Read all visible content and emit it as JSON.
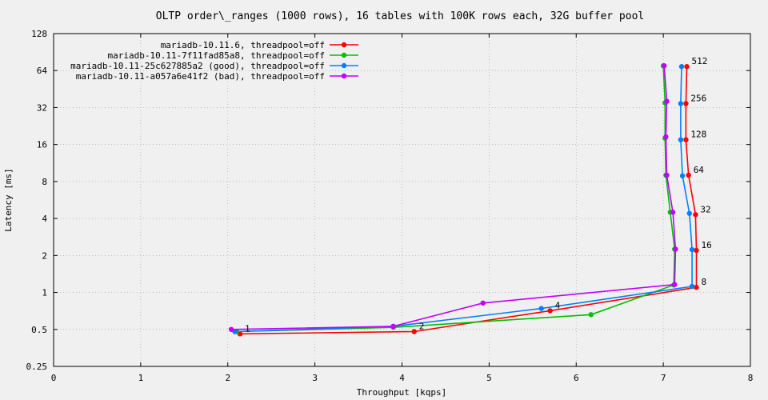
{
  "chart_data": {
    "type": "line",
    "title": "OLTP order\\_ranges (1000 rows), 16 tables with 100K rows each, 32G buffer pool",
    "xlabel": "Throughput [kqps]",
    "ylabel": "Latency [ms]",
    "xlim": [
      0,
      8
    ],
    "ylim": [
      0.25,
      128
    ],
    "yscale": "log2",
    "x_ticks": [
      "0",
      "1",
      "2",
      "3",
      "4",
      "5",
      "6",
      "7",
      "8"
    ],
    "y_ticks": [
      "0.25",
      "0.5",
      "1",
      "2",
      "4",
      "8",
      "16",
      "32",
      "64",
      "128"
    ],
    "grid": true,
    "legend_position": "top-left",
    "point_labels": [
      "1",
      "2",
      "4",
      "8",
      "16",
      "32",
      "64",
      "128",
      "256",
      "512"
    ],
    "series": [
      {
        "name": "mariadb-10.11.6, threadpool=off",
        "color": "#ff0000",
        "x": [
          2.14,
          4.14,
          5.7,
          7.38,
          7.38,
          7.37,
          7.29,
          7.26,
          7.26,
          7.27
        ],
        "y": [
          0.46,
          0.48,
          0.71,
          1.1,
          2.2,
          4.3,
          9.0,
          17.5,
          34.5,
          69.0
        ]
      },
      {
        "name": "mariadb-10.11-7f11fad85a8, threadpool=off",
        "color": "#00c000",
        "x": [
          2.1,
          3.9,
          6.17,
          7.12,
          7.13,
          7.08,
          7.03,
          7.02,
          7.02,
          7.0
        ],
        "y": [
          0.48,
          0.52,
          0.66,
          1.15,
          2.25,
          4.5,
          9.0,
          18.0,
          35.0,
          70.0
        ]
      },
      {
        "name": "mariadb-10.11-25c627885a2 (good), threadpool=off",
        "color": "#0080ff",
        "x": [
          2.08,
          3.9,
          5.6,
          7.33,
          7.33,
          7.3,
          7.22,
          7.2,
          7.2,
          7.21
        ],
        "y": [
          0.48,
          0.53,
          0.74,
          1.12,
          2.23,
          4.4,
          8.9,
          17.5,
          34.5,
          69.0
        ]
      },
      {
        "name": "mariadb-10.11-a057a6e41f2 (bad), threadpool=off",
        "color": "#c000ff",
        "x": [
          2.04,
          3.9,
          4.93,
          7.13,
          7.14,
          7.11,
          7.04,
          7.03,
          7.04,
          7.01
        ],
        "y": [
          0.5,
          0.53,
          0.82,
          1.16,
          2.25,
          4.5,
          9.0,
          18.5,
          36.0,
          70.0
        ]
      }
    ]
  }
}
